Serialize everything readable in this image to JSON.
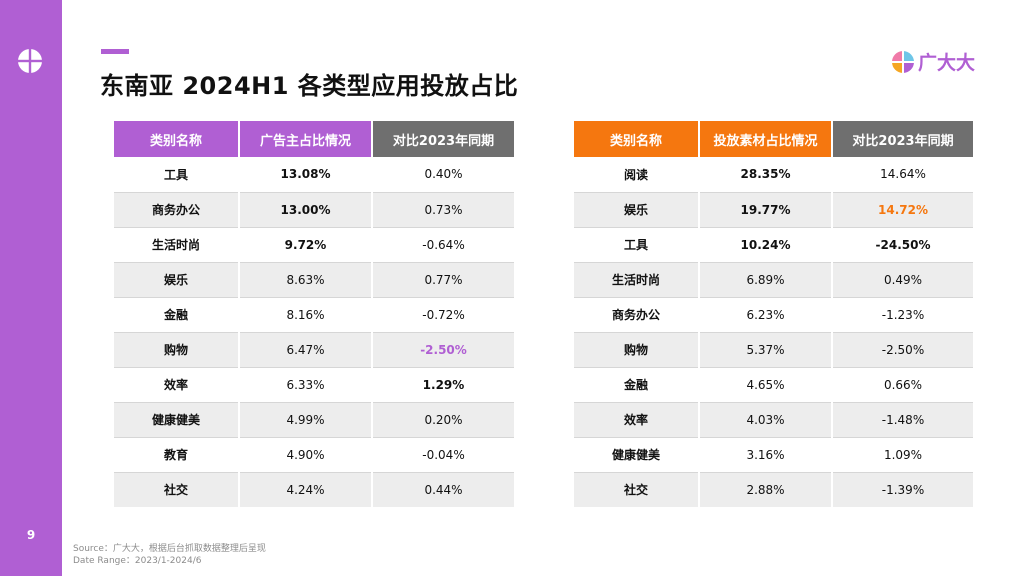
{
  "page_number": "9",
  "title": "东南亚 2024H1 各类型应用投放占比",
  "brand": {
    "name": "广大大"
  },
  "colors": {
    "purple": "#b05fd3",
    "orange": "#f5770f",
    "gray_header": "#6f6f6f"
  },
  "left_table": {
    "headers": [
      "类别名称",
      "广告主占比情况",
      "对比2023年同期"
    ],
    "rows": [
      [
        "工具",
        "13.08%",
        "0.40%"
      ],
      [
        "商务办公",
        "13.00%",
        "0.73%"
      ],
      [
        "生活时尚",
        "9.72%",
        "-0.64%"
      ],
      [
        "娱乐",
        "8.63%",
        "0.77%"
      ],
      [
        "金融",
        "8.16%",
        "-0.72%"
      ],
      [
        "购物",
        "6.47%",
        "-2.50%"
      ],
      [
        "效率",
        "6.33%",
        "1.29%"
      ],
      [
        "健康健美",
        "4.99%",
        "0.20%"
      ],
      [
        "教育",
        "4.90%",
        "-0.04%"
      ],
      [
        "社交",
        "4.24%",
        "0.44%"
      ]
    ]
  },
  "right_table": {
    "headers": [
      "类别名称",
      "投放素材占比情况",
      "对比2023年同期"
    ],
    "rows": [
      [
        "阅读",
        "28.35%",
        "14.64%"
      ],
      [
        "娱乐",
        "19.77%",
        "14.72%"
      ],
      [
        "工具",
        "10.24%",
        "-24.50%"
      ],
      [
        "生活时尚",
        "6.89%",
        "0.49%"
      ],
      [
        "商务办公",
        "6.23%",
        "-1.23%"
      ],
      [
        "购物",
        "5.37%",
        "-2.50%"
      ],
      [
        "金融",
        "4.65%",
        "0.66%"
      ],
      [
        "效率",
        "4.03%",
        "-1.48%"
      ],
      [
        "健康健美",
        "3.16%",
        "1.09%"
      ],
      [
        "社交",
        "2.88%",
        "-1.39%"
      ]
    ]
  },
  "footer": {
    "source": "Source：广大大，根据后台抓取数据整理后呈现",
    "date_range": "Date Range：2023/1-2024/6"
  }
}
